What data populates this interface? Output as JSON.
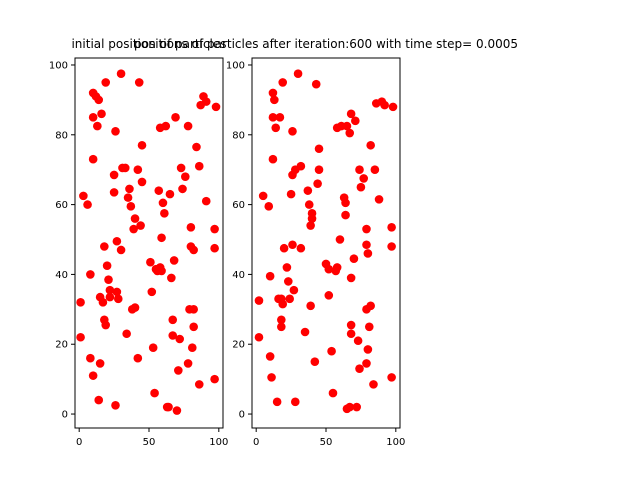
{
  "chart_data": [
    {
      "type": "scatter",
      "title": "initial position of particles",
      "xlim": [
        -3,
        103
      ],
      "ylim": [
        -4,
        102
      ],
      "xticks": [
        0,
        50,
        100
      ],
      "yticks": [
        0,
        20,
        40,
        60,
        80,
        100
      ],
      "grid": false,
      "marker_color": "#ff0000",
      "points": [
        [
          1,
          32
        ],
        [
          1,
          22
        ],
        [
          3,
          62.5
        ],
        [
          6,
          60
        ],
        [
          8,
          40
        ],
        [
          8,
          16
        ],
        [
          10,
          11
        ],
        [
          10,
          92
        ],
        [
          10,
          85
        ],
        [
          10,
          73
        ],
        [
          12,
          91
        ],
        [
          13,
          82.5
        ],
        [
          14,
          90
        ],
        [
          14,
          4
        ],
        [
          15,
          14.5
        ],
        [
          15,
          33.5
        ],
        [
          16,
          86
        ],
        [
          17,
          32
        ],
        [
          18,
          48
        ],
        [
          18,
          27
        ],
        [
          19,
          25.5
        ],
        [
          19,
          95
        ],
        [
          20,
          42.5
        ],
        [
          21,
          38.5
        ],
        [
          22,
          35.5
        ],
        [
          22,
          33.5
        ],
        [
          25,
          68.5
        ],
        [
          26,
          81
        ],
        [
          25,
          63.5
        ],
        [
          26,
          2.5
        ],
        [
          27,
          49.5
        ],
        [
          27,
          35
        ],
        [
          28,
          33
        ],
        [
          30,
          47
        ],
        [
          30,
          97.5
        ],
        [
          31,
          70.5
        ],
        [
          33,
          70.5
        ],
        [
          34,
          23
        ],
        [
          35,
          62
        ],
        [
          36,
          64.5
        ],
        [
          37,
          59.5
        ],
        [
          38,
          30
        ],
        [
          39,
          53
        ],
        [
          40,
          56
        ],
        [
          40,
          30.5
        ],
        [
          42,
          16
        ],
        [
          42,
          70
        ],
        [
          43,
          95
        ],
        [
          44,
          54
        ],
        [
          45,
          66.5
        ],
        [
          45,
          77
        ],
        [
          51,
          43.5
        ],
        [
          52,
          35
        ],
        [
          53,
          19
        ],
        [
          54,
          6
        ],
        [
          55,
          41.5
        ],
        [
          56,
          41
        ],
        [
          57,
          64
        ],
        [
          58,
          82
        ],
        [
          58,
          42
        ],
        [
          59,
          41
        ],
        [
          59,
          50.5
        ],
        [
          60,
          60.5
        ],
        [
          61,
          57.5
        ],
        [
          62,
          82.5
        ],
        [
          63,
          2
        ],
        [
          64,
          2
        ],
        [
          65,
          63
        ],
        [
          66,
          39
        ],
        [
          67,
          27
        ],
        [
          67,
          22.5
        ],
        [
          68,
          44
        ],
        [
          69,
          85
        ],
        [
          70,
          1
        ],
        [
          71,
          12.5
        ],
        [
          72,
          21.5
        ],
        [
          73,
          70.5
        ],
        [
          74,
          64.5
        ],
        [
          76,
          68
        ],
        [
          78,
          82.5
        ],
        [
          78,
          14.5
        ],
        [
          79,
          30
        ],
        [
          80,
          48
        ],
        [
          80,
          53.5
        ],
        [
          81,
          19
        ],
        [
          82,
          47
        ],
        [
          82,
          30
        ],
        [
          82,
          25
        ],
        [
          84,
          76.5
        ],
        [
          86,
          8.5
        ],
        [
          86,
          71
        ],
        [
          87,
          88.5
        ],
        [
          89,
          91
        ],
        [
          91,
          89.5
        ],
        [
          91,
          61
        ],
        [
          97,
          10
        ],
        [
          97,
          53
        ],
        [
          97,
          47.5
        ],
        [
          98,
          88
        ]
      ]
    },
    {
      "type": "scatter",
      "title": "positions of particles after iteration:600 with time step= 0.0005",
      "xlim": [
        -3,
        103
      ],
      "ylim": [
        -4,
        102
      ],
      "xticks": [
        0,
        50,
        100
      ],
      "yticks": [
        0,
        20,
        40,
        60,
        80,
        100
      ],
      "grid": false,
      "marker_color": "#ff0000",
      "points": [
        [
          2,
          32.5
        ],
        [
          2,
          22
        ],
        [
          5,
          62.5
        ],
        [
          9,
          59.5
        ],
        [
          10,
          39.5
        ],
        [
          10,
          16.5
        ],
        [
          11,
          10.5
        ],
        [
          12,
          92
        ],
        [
          12,
          85
        ],
        [
          12,
          73
        ],
        [
          13,
          90
        ],
        [
          14,
          82
        ],
        [
          15,
          3.5
        ],
        [
          17,
          85
        ],
        [
          16,
          33
        ],
        [
          18,
          27
        ],
        [
          18,
          25
        ],
        [
          19,
          31.5
        ],
        [
          18,
          33
        ],
        [
          19,
          95
        ],
        [
          20,
          47.5
        ],
        [
          22,
          42
        ],
        [
          23,
          38
        ],
        [
          24,
          33
        ],
        [
          25,
          63
        ],
        [
          26,
          81
        ],
        [
          26,
          68.5
        ],
        [
          26,
          48.5
        ],
        [
          27,
          35.5
        ],
        [
          28,
          3.5
        ],
        [
          28,
          70
        ],
        [
          30,
          97.5
        ],
        [
          32,
          47.5
        ],
        [
          32,
          71
        ],
        [
          35,
          23.5
        ],
        [
          37,
          64
        ],
        [
          38,
          60
        ],
        [
          39,
          31
        ],
        [
          39,
          54
        ],
        [
          40,
          56
        ],
        [
          40,
          57.5
        ],
        [
          43,
          94.5
        ],
        [
          42,
          15
        ],
        [
          44,
          66
        ],
        [
          45,
          70
        ],
        [
          45,
          76
        ],
        [
          50,
          43
        ],
        [
          52,
          41.5
        ],
        [
          52,
          34
        ],
        [
          54,
          18
        ],
        [
          55,
          6
        ],
        [
          57,
          41
        ],
        [
          58,
          42
        ],
        [
          58,
          82
        ],
        [
          61,
          82.5
        ],
        [
          60,
          50
        ],
        [
          63,
          62
        ],
        [
          64,
          60.5
        ],
        [
          64,
          57
        ],
        [
          65,
          82.5
        ],
        [
          65,
          1.5
        ],
        [
          67,
          2
        ],
        [
          67,
          80.5
        ],
        [
          68,
          86
        ],
        [
          68,
          39
        ],
        [
          68,
          25.5
        ],
        [
          68,
          23
        ],
        [
          70,
          44.5
        ],
        [
          71,
          84
        ],
        [
          72,
          2
        ],
        [
          73,
          21
        ],
        [
          74,
          70
        ],
        [
          74,
          13
        ],
        [
          75,
          65
        ],
        [
          77,
          67.5
        ],
        [
          79,
          30
        ],
        [
          79,
          14.5
        ],
        [
          79,
          48.5
        ],
        [
          79,
          53
        ],
        [
          80,
          46
        ],
        [
          80,
          18.5
        ],
        [
          81,
          25
        ],
        [
          82,
          31
        ],
        [
          82,
          77
        ],
        [
          84,
          8.5
        ],
        [
          85,
          70
        ],
        [
          86,
          89
        ],
        [
          88,
          61.5
        ],
        [
          90,
          89.5
        ],
        [
          92,
          88.5
        ],
        [
          97,
          10.5
        ],
        [
          97,
          53.5
        ],
        [
          97,
          48
        ],
        [
          98,
          88
        ]
      ]
    }
  ]
}
